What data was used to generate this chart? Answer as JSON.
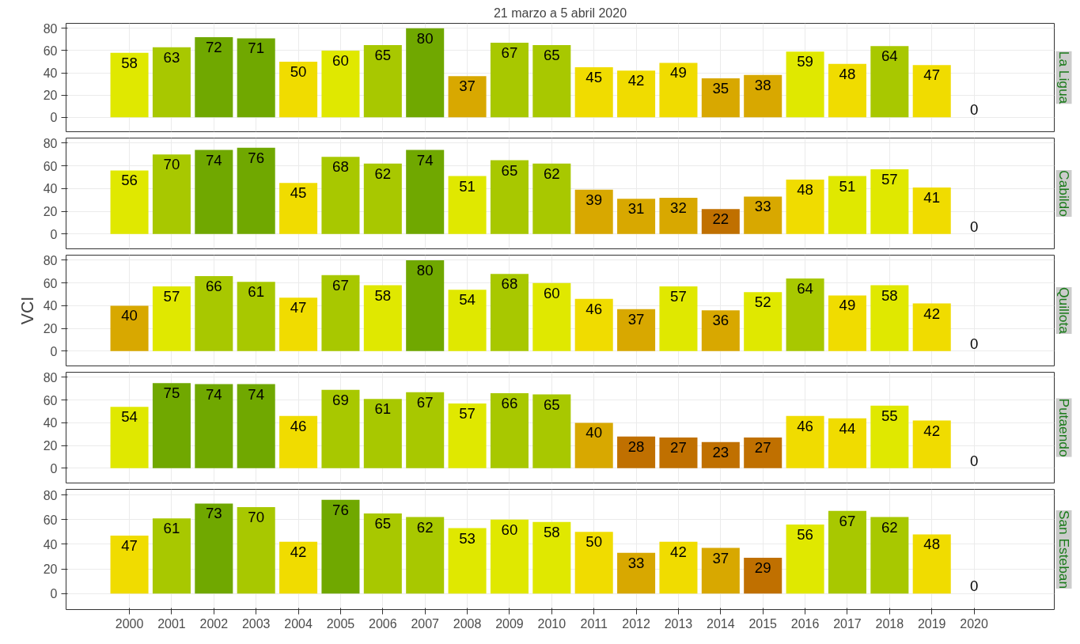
{
  "chart_data": [
    {
      "type": "bar",
      "title": "La Ligua",
      "subtitle": "21 marzo a 5 abril 2020",
      "x": [
        2000,
        2001,
        2002,
        2003,
        2004,
        2005,
        2006,
        2007,
        2008,
        2009,
        2010,
        2011,
        2012,
        2013,
        2014,
        2015,
        2016,
        2017,
        2018,
        2019,
        2020
      ],
      "values": [
        58,
        63,
        72,
        71,
        50,
        60,
        65,
        80,
        37,
        67,
        65,
        45,
        42,
        49,
        35,
        38,
        59,
        48,
        64,
        47,
        0
      ],
      "colors": [
        "#e0e800",
        "#a8c800",
        "#70a800",
        "#70a800",
        "#f0dc00",
        "#e0e800",
        "#a8c800",
        "#70a800",
        "#d8a800",
        "#a8c800",
        "#a8c800",
        "#f0dc00",
        "#f0dc00",
        "#f0dc00",
        "#d8a800",
        "#d8a800",
        "#e0e800",
        "#f0dc00",
        "#a8c800",
        "#f0dc00",
        "#c07000"
      ],
      "xlim": [
        1998.5,
        2021.9
      ],
      "ylim": [
        -13,
        84.5
      ],
      "yticks": [
        0,
        20,
        40,
        60,
        80
      ],
      "xticks": [
        2000,
        2001,
        2002,
        2003,
        2004,
        2005,
        2006,
        2007,
        2008,
        2009,
        2010,
        2011,
        2012,
        2013,
        2014,
        2015,
        2016,
        2017,
        2018,
        2019,
        2020
      ],
      "grid": true,
      "data_labels": true,
      "tick_labels": "y"
    },
    {
      "type": "bar",
      "title": "Cabildo",
      "x": [
        2000,
        2001,
        2002,
        2003,
        2004,
        2005,
        2006,
        2007,
        2008,
        2009,
        2010,
        2011,
        2012,
        2013,
        2014,
        2015,
        2016,
        2017,
        2018,
        2019,
        2020
      ],
      "values": [
        56,
        70,
        74,
        76,
        45,
        68,
        62,
        74,
        51,
        65,
        62,
        39,
        31,
        32,
        22,
        33,
        48,
        51,
        57,
        41,
        0
      ],
      "colors": [
        "#e0e800",
        "#a8c800",
        "#70a800",
        "#70a800",
        "#f0dc00",
        "#a8c800",
        "#a8c800",
        "#70a800",
        "#e0e800",
        "#a8c800",
        "#a8c800",
        "#d8a800",
        "#d8a800",
        "#d8a800",
        "#c07000",
        "#d8a800",
        "#f0dc00",
        "#e0e800",
        "#e0e800",
        "#f0dc00",
        "#c07000"
      ],
      "xlim": [
        1998.5,
        2021.9
      ],
      "ylim": [
        -13,
        84.5
      ],
      "yticks": [
        0,
        20,
        40,
        60,
        80
      ],
      "xticks": [
        2000,
        2001,
        2002,
        2003,
        2004,
        2005,
        2006,
        2007,
        2008,
        2009,
        2010,
        2011,
        2012,
        2013,
        2014,
        2015,
        2016,
        2017,
        2018,
        2019,
        2020
      ],
      "grid": true,
      "data_labels": true,
      "tick_labels": "y"
    },
    {
      "type": "bar",
      "title": "Quillota",
      "ylabel": "VCI",
      "x": [
        2000,
        2001,
        2002,
        2003,
        2004,
        2005,
        2006,
        2007,
        2008,
        2009,
        2010,
        2011,
        2012,
        2013,
        2014,
        2015,
        2016,
        2017,
        2018,
        2019,
        2020
      ],
      "values": [
        40,
        57,
        66,
        61,
        47,
        67,
        58,
        80,
        54,
        68,
        60,
        46,
        37,
        57,
        36,
        52,
        64,
        49,
        58,
        42,
        0
      ],
      "colors": [
        "#d8a800",
        "#e0e800",
        "#a8c800",
        "#a8c800",
        "#f0dc00",
        "#a8c800",
        "#e0e800",
        "#70a800",
        "#e0e800",
        "#a8c800",
        "#e0e800",
        "#f0dc00",
        "#d8a800",
        "#e0e800",
        "#d8a800",
        "#e0e800",
        "#a8c800",
        "#f0dc00",
        "#e0e800",
        "#f0dc00",
        "#c07000"
      ],
      "xlim": [
        1998.5,
        2021.9
      ],
      "ylim": [
        -13,
        84.5
      ],
      "yticks": [
        0,
        20,
        40,
        60,
        80
      ],
      "xticks": [
        2000,
        2001,
        2002,
        2003,
        2004,
        2005,
        2006,
        2007,
        2008,
        2009,
        2010,
        2011,
        2012,
        2013,
        2014,
        2015,
        2016,
        2017,
        2018,
        2019,
        2020
      ],
      "grid": true,
      "data_labels": true,
      "tick_labels": "y"
    },
    {
      "type": "bar",
      "title": "Putaendo",
      "x": [
        2000,
        2001,
        2002,
        2003,
        2004,
        2005,
        2006,
        2007,
        2008,
        2009,
        2010,
        2011,
        2012,
        2013,
        2014,
        2015,
        2016,
        2017,
        2018,
        2019,
        2020
      ],
      "values": [
        54,
        75,
        74,
        74,
        46,
        69,
        61,
        67,
        57,
        66,
        65,
        40,
        28,
        27,
        23,
        27,
        46,
        44,
        55,
        42,
        0
      ],
      "colors": [
        "#e0e800",
        "#70a800",
        "#70a800",
        "#70a800",
        "#f0dc00",
        "#a8c800",
        "#a8c800",
        "#a8c800",
        "#e0e800",
        "#a8c800",
        "#a8c800",
        "#d8a800",
        "#c07000",
        "#c07000",
        "#c07000",
        "#c07000",
        "#f0dc00",
        "#f0dc00",
        "#e0e800",
        "#f0dc00",
        "#c07000"
      ],
      "xlim": [
        1998.5,
        2021.9
      ],
      "ylim": [
        -13,
        84.5
      ],
      "yticks": [
        0,
        20,
        40,
        60,
        80
      ],
      "xticks": [
        2000,
        2001,
        2002,
        2003,
        2004,
        2005,
        2006,
        2007,
        2008,
        2009,
        2010,
        2011,
        2012,
        2013,
        2014,
        2015,
        2016,
        2017,
        2018,
        2019,
        2020
      ],
      "grid": true,
      "data_labels": true,
      "tick_labels": "y"
    },
    {
      "type": "bar",
      "title": "San Esteban",
      "x": [
        2000,
        2001,
        2002,
        2003,
        2004,
        2005,
        2006,
        2007,
        2008,
        2009,
        2010,
        2011,
        2012,
        2013,
        2014,
        2015,
        2016,
        2017,
        2018,
        2019,
        2020
      ],
      "values": [
        47,
        61,
        73,
        70,
        42,
        76,
        65,
        62,
        53,
        60,
        58,
        50,
        33,
        42,
        37,
        29,
        56,
        67,
        62,
        48,
        0
      ],
      "colors": [
        "#f0dc00",
        "#a8c800",
        "#70a800",
        "#a8c800",
        "#f0dc00",
        "#70a800",
        "#a8c800",
        "#a8c800",
        "#e0e800",
        "#e0e800",
        "#e0e800",
        "#f0dc00",
        "#d8a800",
        "#f0dc00",
        "#d8a800",
        "#c07000",
        "#e0e800",
        "#a8c800",
        "#a8c800",
        "#f0dc00",
        "#c07000"
      ],
      "xlim": [
        1998.5,
        2021.9
      ],
      "ylim": [
        -13,
        84.5
      ],
      "yticks": [
        0,
        20,
        40,
        60,
        80
      ],
      "xticks": [
        2000,
        2001,
        2002,
        2003,
        2004,
        2005,
        2006,
        2007,
        2008,
        2009,
        2010,
        2011,
        2012,
        2013,
        2014,
        2015,
        2016,
        2017,
        2018,
        2019,
        2020
      ],
      "grid": true,
      "data_labels": true
    }
  ]
}
